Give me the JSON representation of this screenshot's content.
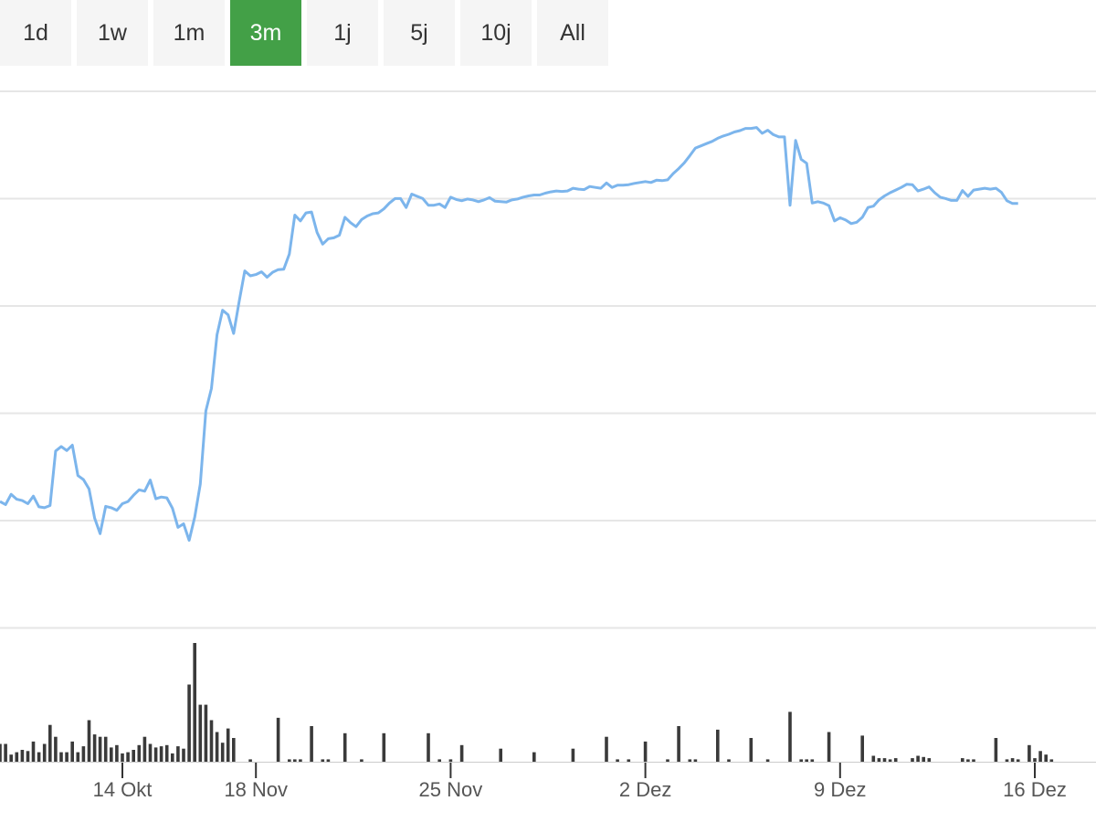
{
  "range_selector": {
    "buttons": [
      "1d",
      "1w",
      "1m",
      "3m",
      "1j",
      "5j",
      "10j",
      "All"
    ],
    "active": "3m"
  },
  "colors": {
    "active_button": "#43a047",
    "button_bg": "#f5f5f5",
    "price_line": "#7cb5ec",
    "volume_bars": "#3a3a3a",
    "grid": "#e6e6e6"
  },
  "chart_data": {
    "type": "line",
    "x_unit": "trading days",
    "x_ticks": [
      {
        "label": "14 Okt",
        "x": 22
      },
      {
        "label": "18 Nov",
        "x": 46
      },
      {
        "label": "25 Nov",
        "x": 81
      },
      {
        "label": "2 Dez",
        "x": 116
      },
      {
        "label": "9 Dez",
        "x": 151
      },
      {
        "label": "16 Dez",
        "x": 186
      }
    ],
    "xlim": [
      0,
      197
    ],
    "y_axis_labels": "none",
    "grid": "horizontal",
    "series": [
      {
        "type": "line",
        "values": [
          2.82,
          2.75,
          2.98,
          2.87,
          2.84,
          2.77,
          2.94,
          2.7,
          2.68,
          2.73,
          3.95,
          4.05,
          3.96,
          4.08,
          3.4,
          3.31,
          3.1,
          2.45,
          2.1,
          2.71,
          2.68,
          2.62,
          2.77,
          2.82,
          2.96,
          3.08,
          3.05,
          3.3,
          2.88,
          2.92,
          2.9,
          2.67,
          2.24,
          2.32,
          1.95,
          2.47,
          3.21,
          4.85,
          5.35,
          6.55,
          7.1,
          7.0,
          6.58,
          7.3,
          7.98,
          7.87,
          7.9,
          7.96,
          7.84,
          7.95,
          8.01,
          8.02,
          8.36,
          9.23,
          9.1,
          9.28,
          9.3,
          8.84,
          8.58,
          8.7,
          8.72,
          8.78,
          9.18,
          9.06,
          8.97,
          9.13,
          9.21,
          9.26,
          9.28,
          9.37,
          9.5,
          9.6,
          9.6,
          9.4,
          9.7,
          9.65,
          9.6,
          9.45,
          9.45,
          9.48,
          9.4,
          9.63,
          9.58,
          9.55,
          9.59,
          9.57,
          9.53,
          9.57,
          9.62,
          9.54,
          9.53,
          9.52,
          9.57,
          9.59,
          9.63,
          9.66,
          9.68,
          9.68,
          9.72,
          9.75,
          9.77,
          9.76,
          9.77,
          9.83,
          9.81,
          9.8,
          9.87,
          9.85,
          9.83,
          9.95,
          9.85,
          9.9,
          9.9,
          9.91,
          9.94,
          9.96,
          9.98,
          9.96,
          10.01,
          10.0,
          10.02,
          10.16,
          10.27,
          10.4,
          10.56,
          10.73,
          10.78,
          10.83,
          10.88,
          10.95,
          11.0,
          11.04,
          11.09,
          11.12,
          11.17,
          11.17,
          11.19,
          11.06,
          11.13,
          11.03,
          10.98,
          10.98,
          9.45,
          10.9,
          10.48,
          10.39,
          9.5,
          9.53,
          9.5,
          9.44,
          9.1,
          9.17,
          9.12,
          9.04,
          9.07,
          9.18,
          9.4,
          9.43,
          9.57,
          9.66,
          9.73,
          9.79,
          9.85,
          9.92,
          9.91,
          9.77,
          9.81,
          9.86,
          9.73,
          9.63,
          9.6,
          9.56,
          9.56,
          9.78,
          9.65,
          9.79,
          9.81,
          9.83,
          9.81,
          9.83,
          9.74,
          9.55,
          9.49,
          9.49
        ]
      },
      {
        "type": "bar",
        "values": [
          0.15,
          0.15,
          0.06,
          0.08,
          0.1,
          0.09,
          0.17,
          0.08,
          0.15,
          0.31,
          0.21,
          0.08,
          0.08,
          0.17,
          0.08,
          0.13,
          0.35,
          0.23,
          0.21,
          0.21,
          0.12,
          0.14,
          0.07,
          0.08,
          0.1,
          0.14,
          0.21,
          0.15,
          0.12,
          0.13,
          0.14,
          0.07,
          0.13,
          0.11,
          0.65,
          1.0,
          0.48,
          0.48,
          0.35,
          0.25,
          0.16,
          0.28,
          0.2,
          0.0,
          0.0,
          0.02,
          0.0,
          0.0,
          0.0,
          0.0,
          0.37,
          0.0,
          0.02,
          0.02,
          0.02,
          0.0,
          0.3,
          0.0,
          0.02,
          0.02,
          0.0,
          0.0,
          0.24,
          0.0,
          0.0,
          0.02,
          0.0,
          0.0,
          0.0,
          0.24,
          0.0,
          0.0,
          0.0,
          0.0,
          0.0,
          0.0,
          0.0,
          0.24,
          0.0,
          0.02,
          0.0,
          0.02,
          0.0,
          0.14,
          0.0,
          0.0,
          0.0,
          0.0,
          0.0,
          0.0,
          0.11,
          0.0,
          0.0,
          0.0,
          0.0,
          0.0,
          0.08,
          0.0,
          0.0,
          0.0,
          0.0,
          0.0,
          0.0,
          0.11,
          0.0,
          0.0,
          0.0,
          0.0,
          0.0,
          0.21,
          0.0,
          0.02,
          0.0,
          0.02,
          0.0,
          0.0,
          0.17,
          0.0,
          0.0,
          0.0,
          0.02,
          0.0,
          0.3,
          0.0,
          0.02,
          0.02,
          0.0,
          0.0,
          0.0,
          0.27,
          0.0,
          0.02,
          0.0,
          0.0,
          0.0,
          0.2,
          0.0,
          0.0,
          0.02,
          0.0,
          0.0,
          0.0,
          0.42,
          0.0,
          0.02,
          0.02,
          0.02,
          0.0,
          0.0,
          0.25,
          0.0,
          0.0,
          0.0,
          0.0,
          0.0,
          0.22,
          0.0,
          0.05,
          0.03,
          0.03,
          0.02,
          0.03,
          0.0,
          0.0,
          0.03,
          0.05,
          0.04,
          0.03,
          0.0,
          0.0,
          0.0,
          0.0,
          0.0,
          0.03,
          0.02,
          0.02,
          0.0,
          0.0,
          0.0,
          0.2,
          0.0,
          0.02,
          0.03,
          0.02,
          0.0,
          0.14,
          0.03,
          0.09,
          0.06,
          0.02
        ]
      }
    ]
  }
}
